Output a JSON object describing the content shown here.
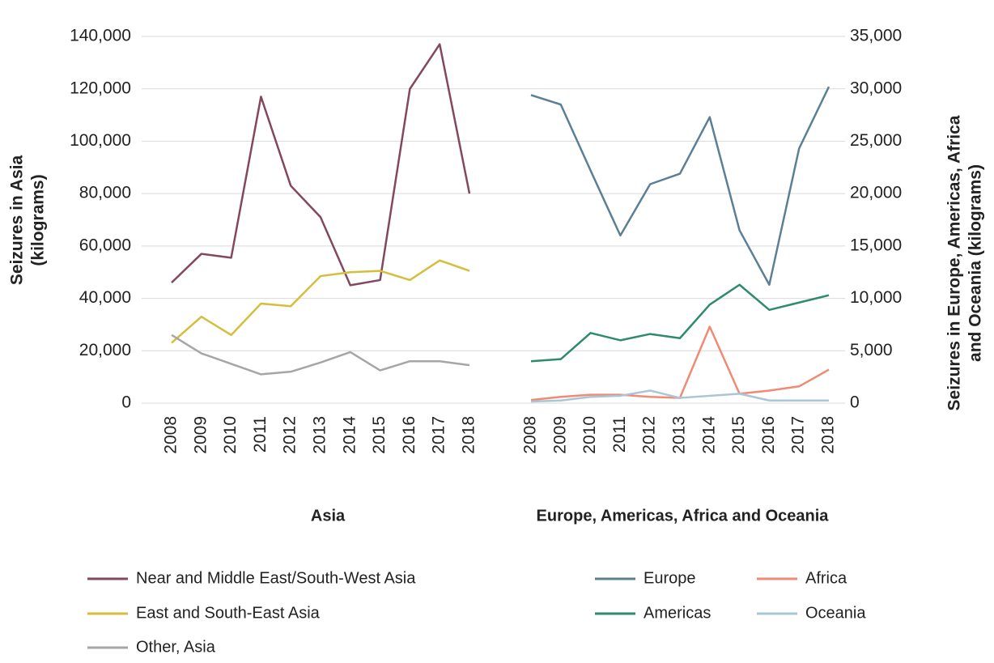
{
  "chart_data": {
    "type": "line",
    "categories": [
      "2008",
      "2009",
      "2010",
      "2011",
      "2012",
      "2013",
      "2014",
      "2015",
      "2016",
      "2017",
      "2018"
    ],
    "group_labels": [
      "Asia",
      "Europe, Americas,  Africa and Oceania"
    ],
    "y_label": [
      "Seizures in Asia",
      "(kilograms)"
    ],
    "y2_label": [
      "Seizures in Europe, Americas, Africa",
      "and Oceania (kilograms)"
    ],
    "ylim": [
      0,
      140000
    ],
    "yticks": [
      0,
      {
        "value": 20000,
        "label": "20,000"
      },
      {
        "value": 40000,
        "label": "40,000"
      },
      {
        "value": 60000,
        "label": "60,000"
      },
      {
        "value": 80000,
        "label": "80,000"
      },
      {
        "value": 100000,
        "label": "100,000"
      },
      {
        "value": 120000,
        "label": "120,000"
      },
      {
        "value": 140000,
        "label": "140,000"
      }
    ],
    "y2lim": [
      0,
      35000
    ],
    "y2ticks": [
      0,
      {
        "value": 5000,
        "label": "5,000"
      },
      {
        "value": 10000,
        "label": "10,000"
      },
      {
        "value": 15000,
        "label": "15,000"
      },
      {
        "value": 20000,
        "label": "20,000"
      },
      {
        "value": 25000,
        "label": "25,000"
      },
      {
        "value": 30000,
        "label": "30,000"
      },
      {
        "value": 35000,
        "label": "35,000"
      }
    ],
    "grid": true,
    "series": [
      {
        "name": "Near and Middle East/South-West Asia",
        "color": "#83475f",
        "values": [
          46000,
          57000,
          55500,
          117000,
          83000,
          71000,
          45000,
          47000,
          120000,
          137000,
          80000
        ]
      },
      {
        "name": "East and South-East Asia",
        "color": "#d4be3b",
        "values": [
          23000,
          33000,
          26000,
          38000,
          37000,
          48500,
          50000,
          50500,
          47000,
          54500,
          50500
        ]
      },
      {
        "name": "Other, Asia",
        "color": "#a6a6a6",
        "values": [
          26000,
          19000,
          15000,
          11000,
          12000,
          15500,
          19500,
          12500,
          16000,
          16000,
          14500
        ]
      },
      {
        "name": "Europe",
        "color": "#5b7f95",
        "axis": "y2",
        "values": [
          29400,
          28500,
          22200,
          16000,
          20900,
          21900,
          27300,
          16500,
          11300,
          24300,
          30200
        ]
      },
      {
        "name": "Americas",
        "color": "#2e8b6c",
        "axis": "y2",
        "values": [
          4000,
          4200,
          6700,
          6000,
          6600,
          6200,
          9400,
          11300,
          8900,
          9600,
          10300
        ]
      },
      {
        "name": "Africa",
        "color": "#f08a74",
        "axis": "y2",
        "values": [
          300,
          600,
          800,
          800,
          600,
          500,
          7300,
          900,
          1200,
          1600,
          3200
        ]
      },
      {
        "name": "Oceania",
        "color": "#a9c6d6",
        "axis": "y2",
        "values": [
          150,
          250,
          600,
          700,
          1200,
          500,
          700,
          900,
          250,
          250,
          250
        ]
      }
    ]
  }
}
